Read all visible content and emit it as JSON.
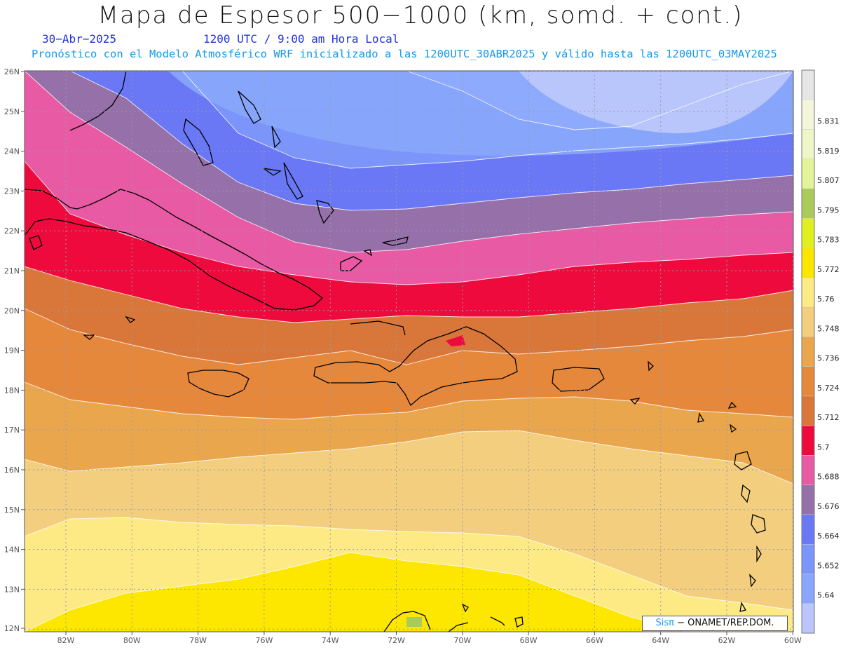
{
  "header": {
    "title": "Mapa de Espesor 500−1000 (km, somd. + cont.)",
    "date": "30−Abr−2025",
    "time": "1200 UTC / 9:00 am Hora Local",
    "model_info": "Pronóstico con el Modelo Atmosférico WRF inicializado a las 1200UTC_30ABR2025 y válido hasta las  1200UTC_03MAY2025"
  },
  "map": {
    "lat_labels": [
      "26N",
      "25N",
      "24N",
      "23N",
      "22N",
      "21N",
      "20N",
      "19N",
      "18N",
      "17N",
      "16N",
      "15N",
      "14N",
      "13N",
      "12N"
    ],
    "lon_labels": [
      "82W",
      "80W",
      "78W",
      "76W",
      "74W",
      "72W",
      "70W",
      "68W",
      "66W",
      "64W",
      "62W",
      "60W"
    ],
    "bands": [
      {
        "color": "#b9c6fb"
      },
      {
        "color": "#8aa6fc"
      },
      {
        "color": "#7b95fb"
      },
      {
        "color": "#6a78f5"
      },
      {
        "color": "#9670a8"
      },
      {
        "color": "#e85aa4"
      },
      {
        "color": "#ee0a3c"
      },
      {
        "color": "#d9773a"
      },
      {
        "color": "#e6883c"
      },
      {
        "color": "#eaa64d"
      },
      {
        "color": "#f2ce7e"
      },
      {
        "color": "#fdea85"
      },
      {
        "color": "#fde600"
      }
    ]
  },
  "colorbar": {
    "levels": [
      {
        "label": "",
        "color": "#e6e6e6"
      },
      {
        "label": "5.831",
        "color": "#f4f6dc"
      },
      {
        "label": "5.819",
        "color": "#eef5c6"
      },
      {
        "label": "5.807",
        "color": "#e2f39a"
      },
      {
        "label": "5.795",
        "color": "#aacb5a"
      },
      {
        "label": "5.783",
        "color": "#e2ef1e"
      },
      {
        "label": "5.772",
        "color": "#fbe600"
      },
      {
        "label": "5.76",
        "color": "#fdea85"
      },
      {
        "label": "5.748",
        "color": "#f2ce7e"
      },
      {
        "label": "5.736",
        "color": "#eaa64d"
      },
      {
        "label": "5.724",
        "color": "#e6883c"
      },
      {
        "label": "5.712",
        "color": "#d9773a"
      },
      {
        "label": "5.7",
        "color": "#ee0a3c"
      },
      {
        "label": "5.688",
        "color": "#e85aa4"
      },
      {
        "label": "5.676",
        "color": "#9670a8"
      },
      {
        "label": "5.664",
        "color": "#6a78f5"
      },
      {
        "label": "5.652",
        "color": "#7b95fb"
      },
      {
        "label": "5.64",
        "color": "#8aa6fc"
      },
      {
        "label": "",
        "color": "#b9c6fb"
      }
    ]
  },
  "credit": {
    "sis": "Sisπ",
    "org": "− ONAMET/REP.DOM."
  }
}
